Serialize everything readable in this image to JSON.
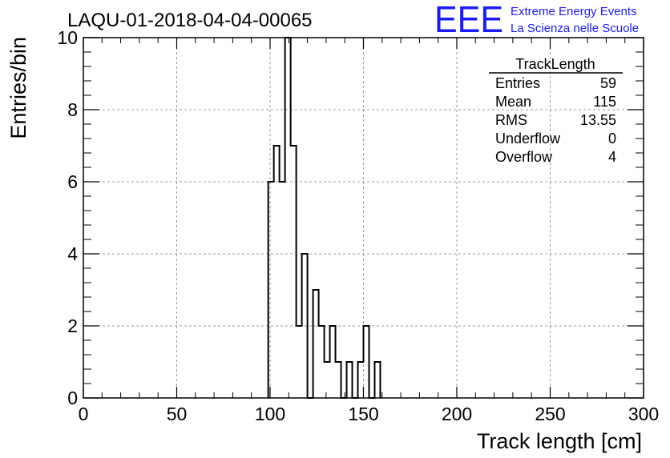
{
  "colors": {
    "brand": "#1a1aff",
    "line": "#000000",
    "grid": "#9a9a9a"
  },
  "chart_data": {
    "type": "bar",
    "title": "LAQU-01-2018-04-04-00065",
    "xlabel": "Track length [cm]",
    "ylabel": "Entries/bin",
    "xlim": [
      0,
      300
    ],
    "ylim": [
      0,
      10
    ],
    "x_ticks": [
      "0",
      "50",
      "100",
      "150",
      "200",
      "250",
      "300"
    ],
    "y_ticks": [
      "0",
      "2",
      "4",
      "6",
      "8",
      "10"
    ],
    "grid": true,
    "bin_width": 3,
    "series": [
      {
        "bin_edges": [
          99,
          102,
          105,
          108,
          111,
          114,
          117,
          120,
          123,
          126,
          129,
          132,
          135,
          138,
          141,
          144,
          147,
          150,
          153,
          156,
          159
        ],
        "values": [
          6,
          7,
          6,
          10,
          7,
          2,
          4,
          0,
          3,
          2,
          1,
          2,
          1,
          0,
          1,
          0,
          1,
          2,
          0,
          1
        ]
      }
    ],
    "stats_box": {
      "title": "TrackLength",
      "rows": [
        {
          "label": "Entries",
          "value": "59"
        },
        {
          "label": "Mean",
          "value": "115"
        },
        {
          "label": "RMS",
          "value": "13.55"
        },
        {
          "label": "Underflow",
          "value": "0"
        },
        {
          "label": "Overflow",
          "value": "4"
        }
      ]
    }
  },
  "logo": {
    "letters": "EEE",
    "line1": "Extreme Energy Events",
    "line2": "La Scienza nelle Scuole"
  }
}
